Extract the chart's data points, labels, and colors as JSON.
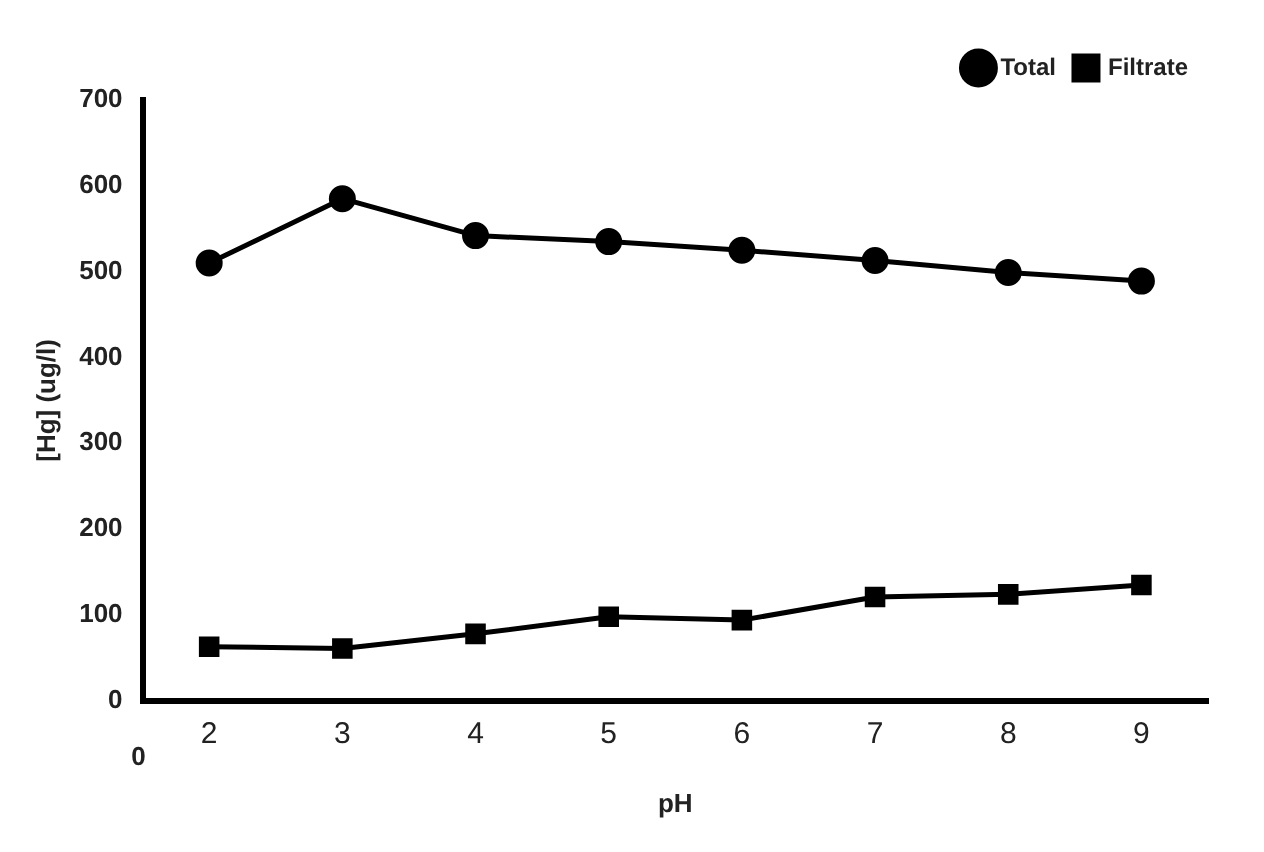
{
  "chart_data": {
    "type": "line",
    "xlabel": "pH",
    "ylabel": "[Hg] (ug/l)",
    "categories": [
      "2",
      "3",
      "4",
      "5",
      "6",
      "7",
      "8",
      "9"
    ],
    "series": [
      {
        "name": "Total",
        "color": "#000000",
        "marker": "circle",
        "values": [
          510,
          585,
          542,
          535,
          525,
          513,
          499,
          489
        ]
      },
      {
        "name": "Filtrate",
        "color": "#000000",
        "marker": "square",
        "values": [
          63,
          61,
          78,
          98,
          94,
          121,
          124,
          135
        ]
      }
    ],
    "ylim": [
      0,
      700
    ],
    "yticks": [
      0,
      100,
      200,
      300,
      400,
      500,
      600,
      700
    ],
    "grid": false,
    "legend": "top right",
    "line_style": "solid",
    "annotations": [
      "0"
    ]
  }
}
